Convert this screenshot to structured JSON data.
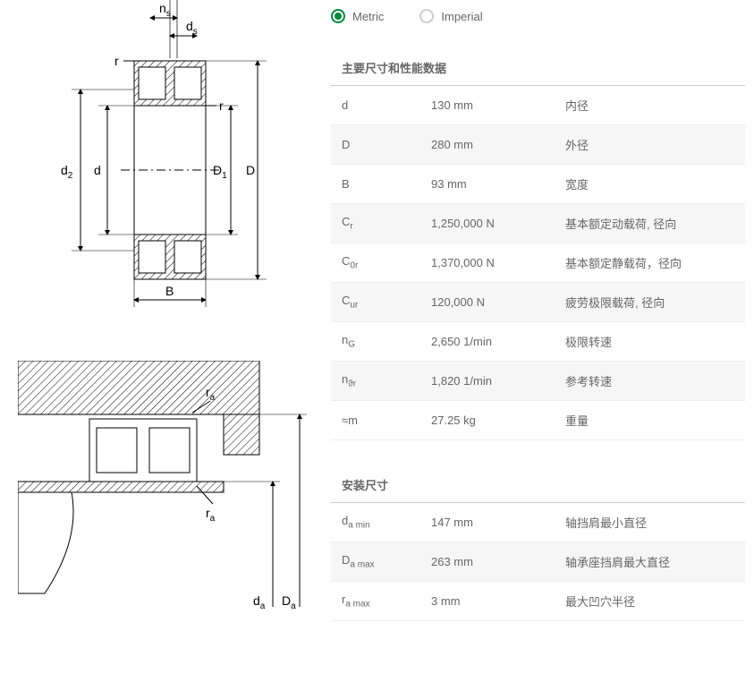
{
  "units": {
    "metric": "Metric",
    "imperial": "Imperial",
    "selected": "metric"
  },
  "section1": {
    "title": "主要尺寸和性能数据",
    "rows": [
      {
        "sym": "d",
        "sub": "",
        "val": "130 mm",
        "desc": "内径"
      },
      {
        "sym": "D",
        "sub": "",
        "val": "280 mm",
        "desc": "外径"
      },
      {
        "sym": "B",
        "sub": "",
        "val": "93 mm",
        "desc": "宽度"
      },
      {
        "sym": "C",
        "sub": "r",
        "val": "1,250,000 N",
        "desc": "基本额定动载荷, 径向"
      },
      {
        "sym": "C",
        "sub": "0r",
        "val": "1,370,000 N",
        "desc": "基本额定静载荷，径向"
      },
      {
        "sym": "C",
        "sub": "ur",
        "val": "120,000 N",
        "desc": "疲劳极限载荷, 径向"
      },
      {
        "sym": "n",
        "sub": "G",
        "val": "2,650 1/min",
        "desc": "极限转速"
      },
      {
        "sym": "n",
        "sub": "ϑr",
        "val": "1,820 1/min",
        "desc": "参考转速"
      },
      {
        "sym": "≈m",
        "sub": "",
        "val": "27.25 kg",
        "desc": "重量"
      }
    ]
  },
  "section2": {
    "title": "安装尺寸",
    "rows": [
      {
        "sym": "d",
        "sub": "a min",
        "val": "147 mm",
        "desc": "轴挡肩最小直径"
      },
      {
        "sym": "D",
        "sub": "a max",
        "val": "263 mm",
        "desc": "轴承座挡肩最大直径"
      },
      {
        "sym": "r",
        "sub": "a max",
        "val": "3 mm",
        "desc": "最大凹穴半径"
      }
    ]
  },
  "diagram1_labels": {
    "ns": "n",
    "ns_sub": "s",
    "ds": "d",
    "ds_sub": "s",
    "r1": "r",
    "r2": "r",
    "d2": "d",
    "d2_sub": "2",
    "d": "d",
    "D1": "D",
    "D1_sub": "1",
    "D": "D",
    "B": "B"
  },
  "diagram2_labels": {
    "ra1": "r",
    "ra1_sub": "a",
    "ra2": "r",
    "ra2_sub": "a",
    "da": "d",
    "da_sub": "a",
    "Da": "D",
    "Da_sub": "a"
  },
  "colors": {
    "accent": "#00893d",
    "line": "#000000",
    "hatch": "#000000",
    "text": "#666666",
    "row_alt_bg": "#f6f6f6",
    "border": "#cccccc"
  }
}
